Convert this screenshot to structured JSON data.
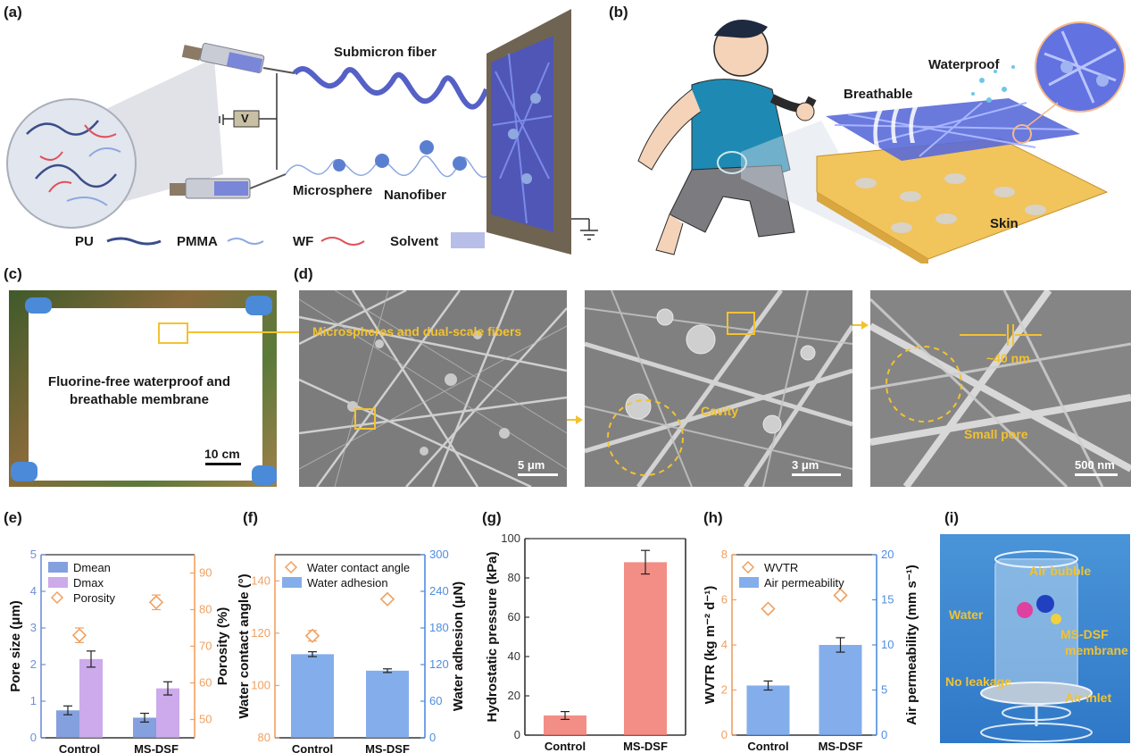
{
  "panels": {
    "a": {
      "label": "(a)",
      "submicron_fiber": "Submicron fiber",
      "voltage": "V",
      "microsphere": "Microsphere",
      "nanofiber": "Nanofiber",
      "legend": {
        "pu": "PU",
        "pmma": "PMMA",
        "wf": "WF",
        "solvent": "Solvent"
      }
    },
    "b": {
      "label": "(b)",
      "waterproof": "Waterproof",
      "breathable": "Breathable",
      "skin": "Skin"
    },
    "c": {
      "label": "(c)",
      "membrane_text_1": "Fluorine-free waterproof and",
      "membrane_text_2": "breathable membrane",
      "scale": "10 cm"
    },
    "d": {
      "label": "(d)",
      "sem1_caption": "Microspheres and dual-scale fibers",
      "sem1_scale": "5 μm",
      "sem2_caption": "Cavity",
      "sem2_scale": "3 μm",
      "sem3_caption_size": "~40 nm",
      "sem3_caption_pore": "Small pore",
      "sem3_scale": "500 nm"
    },
    "e": {
      "label": "(e)"
    },
    "f": {
      "label": "(f)"
    },
    "g": {
      "label": "(g)"
    },
    "h": {
      "label": "(h)"
    },
    "i": {
      "label": "(i)",
      "air_bubble": "Air bubble",
      "water": "Water",
      "membrane_1": "MS-DSF",
      "membrane_2": "membrane",
      "no_leakage": "No leakage",
      "air_inlet": "Air inlet"
    }
  },
  "chart_data": [
    {
      "panel": "e",
      "type": "bar",
      "categories": [
        "Control",
        "MS-DSF"
      ],
      "ylabel": "Pore size (μm)",
      "y2label": "Porosity (%)",
      "ylim": [
        0,
        5
      ],
      "y2lim": [
        45,
        95
      ],
      "yticks": [
        0,
        1,
        2,
        3,
        4,
        5
      ],
      "y2ticks": [
        50,
        60,
        70,
        80,
        90
      ],
      "legend": [
        "D_mean",
        "D_max",
        "Porosity"
      ],
      "series": [
        {
          "name": "D_mean",
          "values": [
            0.75,
            0.55
          ],
          "errors": [
            0.12,
            0.12
          ],
          "color": "#6f8fd8"
        },
        {
          "name": "D_max",
          "values": [
            2.15,
            1.35
          ],
          "errors": [
            0.22,
            0.18
          ],
          "color": "#c39be8"
        },
        {
          "name": "Porosity",
          "axis": "right",
          "marker": "diamond",
          "values": [
            73,
            82
          ],
          "errors": [
            2,
            2
          ],
          "color": "#f0a060"
        }
      ]
    },
    {
      "panel": "f",
      "type": "bar",
      "categories": [
        "Control",
        "MS-DSF"
      ],
      "ylabel": "Water contact angle (°)",
      "y2label": "Water adhesion (μN)",
      "ylim": [
        80,
        150
      ],
      "y2lim": [
        0,
        300
      ],
      "yticks": [
        80,
        100,
        120,
        140
      ],
      "y2ticks": [
        0,
        60,
        120,
        180,
        240,
        300
      ],
      "legend": [
        "Water contact angle",
        "Water adhesion"
      ],
      "series": [
        {
          "name": "Water adhesion",
          "axis": "right",
          "values": [
            137,
            110
          ],
          "errors": [
            4,
            3
          ],
          "color": "#6fa0e8"
        },
        {
          "name": "Water contact angle",
          "marker": "diamond",
          "values": [
            119,
            133
          ],
          "errors": [
            2,
            1
          ],
          "color": "#f0a060"
        }
      ]
    },
    {
      "panel": "g",
      "type": "bar",
      "categories": [
        "Control",
        "MS-DSF"
      ],
      "ylabel": "Hydrostatic pressure (kPa)",
      "ylim": [
        0,
        100
      ],
      "yticks": [
        0,
        20,
        40,
        60,
        80,
        100
      ],
      "series": [
        {
          "name": "Hydrostatic pressure",
          "values": [
            10,
            88
          ],
          "errors": [
            2,
            6
          ],
          "color": "#f07a70"
        }
      ]
    },
    {
      "panel": "h",
      "type": "bar",
      "categories": [
        "Control",
        "MS-DSF"
      ],
      "ylabel": "WVTR (kg m⁻² d⁻¹)",
      "y2label": "Air permeability (mm s⁻¹)",
      "ylim": [
        0,
        8
      ],
      "y2lim": [
        0,
        20
      ],
      "yticks": [
        0,
        2,
        4,
        6,
        8
      ],
      "y2ticks": [
        0,
        5,
        10,
        15,
        20
      ],
      "legend": [
        "WVTR",
        "Air permeability"
      ],
      "series": [
        {
          "name": "Air permeability",
          "axis": "right",
          "values": [
            5.5,
            10
          ],
          "errors": [
            0.5,
            0.8
          ],
          "color": "#6fa0e8"
        },
        {
          "name": "WVTR",
          "marker": "diamond",
          "values": [
            5.6,
            6.2
          ],
          "errors": [
            0.1,
            0.1
          ],
          "color": "#f0a060"
        }
      ]
    }
  ]
}
